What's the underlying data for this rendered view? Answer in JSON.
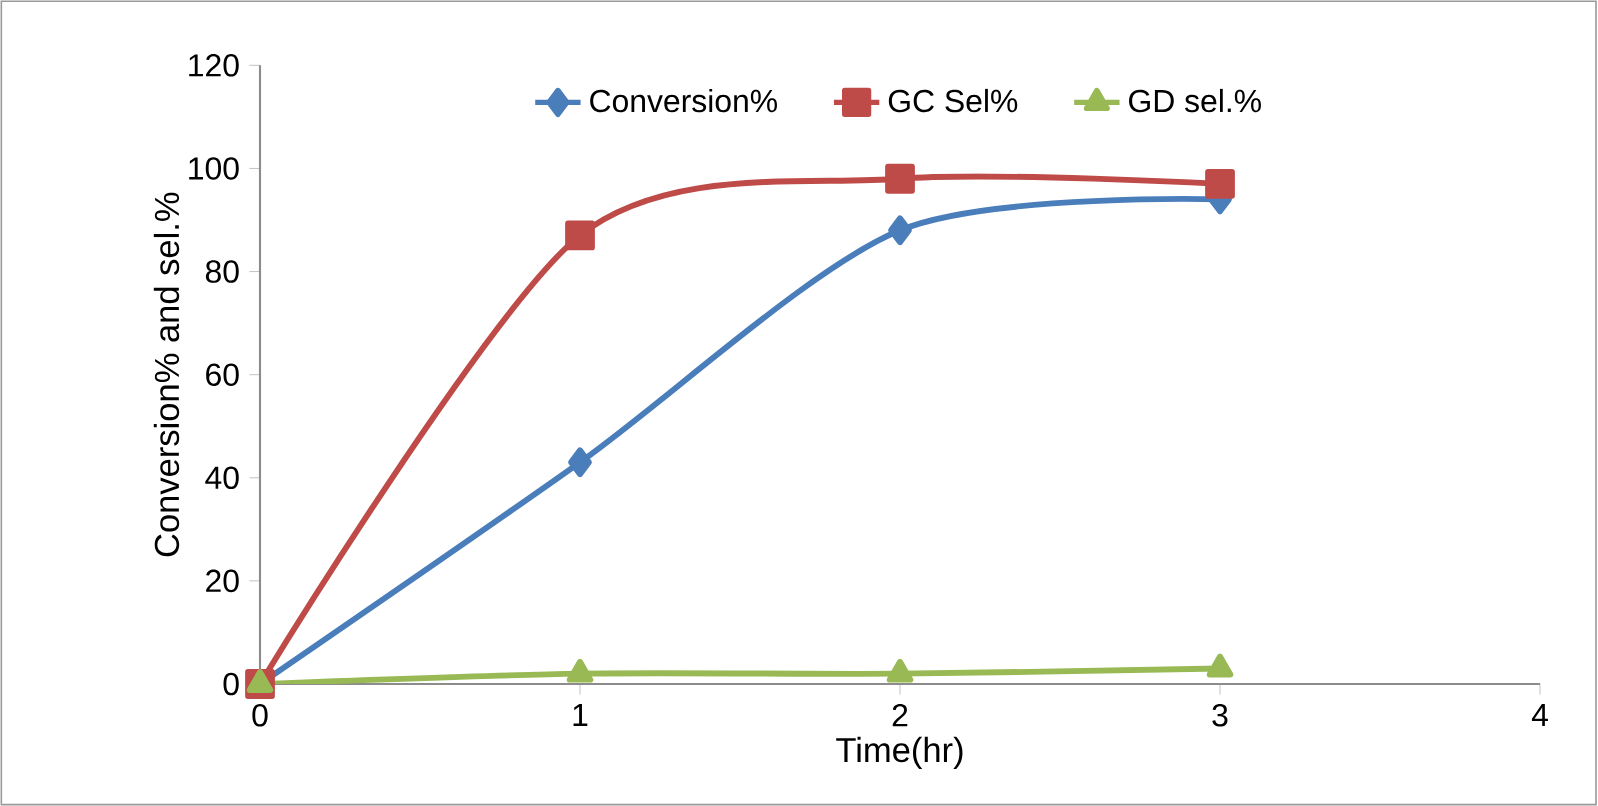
{
  "chart_data": {
    "type": "line",
    "xlabel": "Time(hr)",
    "ylabel": "Conversion% and sel.%",
    "x": [
      0,
      1,
      2,
      3
    ],
    "xlim": [
      0,
      4
    ],
    "xticks": [
      0,
      1,
      2,
      3,
      4
    ],
    "ylim": [
      0,
      120
    ],
    "yticks": [
      0,
      20,
      40,
      60,
      80,
      100,
      120
    ],
    "grid": false,
    "legend": "top",
    "line_style": "solid",
    "series": [
      {
        "name": "Conversion%",
        "color": "#4a7ebb",
        "marker": "diamond",
        "values": [
          0,
          43,
          88,
          94
        ]
      },
      {
        "name": "GC Sel%",
        "color": "#be4b48",
        "marker": "square",
        "values": [
          0,
          87,
          98,
          97
        ]
      },
      {
        "name": "GD sel.%",
        "color": "#98b954",
        "marker": "triangle",
        "values": [
          0,
          2,
          2,
          3
        ]
      }
    ]
  }
}
